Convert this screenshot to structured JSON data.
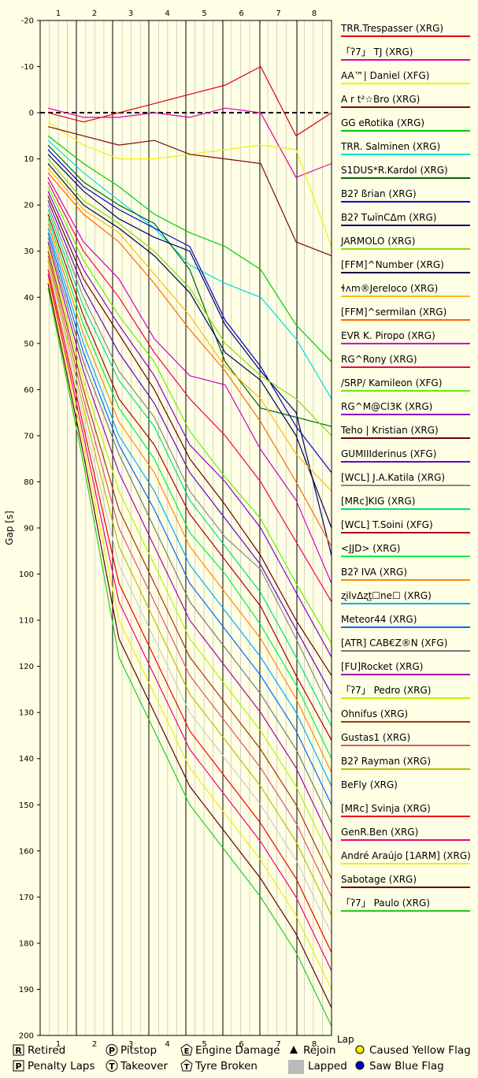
{
  "chart_data": {
    "type": "line",
    "ylabel": "Gap [s]",
    "xlabel": "Lap",
    "ylim": [
      -20,
      200
    ],
    "y_ticks": [
      -20,
      -10,
      0,
      10,
      20,
      30,
      40,
      50,
      60,
      70,
      80,
      90,
      100,
      110,
      120,
      130,
      140,
      150,
      160,
      170,
      180,
      190,
      200
    ],
    "lap_labels": [
      "1",
      "2",
      "3",
      "4",
      "5",
      "6",
      "7",
      "8"
    ],
    "grid": true,
    "legend_position": "right",
    "series": [
      {
        "name": "TRR.Trespasser (XRG)",
        "color": "#dd0000",
        "values": [
          0,
          2,
          0,
          -2,
          -4,
          -6,
          -10,
          5,
          0
        ]
      },
      {
        "name": "「ʔ7」 TJ (XRG)",
        "color": "#dd00aa",
        "values": [
          -1,
          1,
          1,
          0,
          1,
          -1,
          0,
          14,
          11
        ]
      },
      {
        "name": "AA™| Daniel (XFG)",
        "color": "#f0f000",
        "values": [
          2,
          7,
          10,
          10,
          9,
          8,
          7,
          8,
          29
        ]
      },
      {
        "name": "A r t²☆Bro (XRG)",
        "color": "#7a0a0a",
        "values": [
          3,
          5,
          7,
          6,
          9,
          10,
          11,
          28,
          31
        ]
      },
      {
        "name": "GG eRotika (XRG)",
        "color": "#00cc00",
        "values": [
          5,
          11,
          16,
          22,
          26,
          29,
          34,
          46,
          54
        ]
      },
      {
        "name": "TRR. Salminen (XRG)",
        "color": "#00dddd",
        "values": [
          6,
          13,
          19,
          25,
          33,
          37,
          40,
          49,
          62
        ]
      },
      {
        "name": "S1DUS*R.Kardol (XRG)",
        "color": "#006600",
        "values": [
          7,
          15,
          20,
          24,
          34,
          54,
          64,
          66,
          68
        ]
      },
      {
        "name": "B2ʔ ßrian (XRG)",
        "color": "#0000cc",
        "values": [
          8,
          16,
          21,
          25,
          29,
          45,
          55,
          68,
          78
        ]
      },
      {
        "name": "B2ʔ TωïnCΔm (XRG)",
        "color": "#000066",
        "values": [
          9,
          17,
          23,
          27,
          30,
          46,
          56,
          65,
          96
        ]
      },
      {
        "name": "JARMOLO (XRG)",
        "color": "#88dd00",
        "values": [
          10,
          19,
          24,
          30,
          38,
          50,
          57,
          62,
          70
        ]
      },
      {
        "name": "[FFM]^Number (XRG)",
        "color": "#000044",
        "values": [
          11,
          20,
          25,
          31,
          39,
          52,
          58,
          70,
          90
        ]
      },
      {
        "name": "ɬʌm®Jereloco (XRG)",
        "color": "#ffbb00",
        "values": [
          12,
          21,
          26,
          35,
          44,
          55,
          62,
          74,
          82
        ]
      },
      {
        "name": "[FFM]^sermilan (XRG)",
        "color": "#ff6600",
        "values": [
          13,
          22,
          28,
          37,
          47,
          56,
          67,
          80,
          94
        ]
      },
      {
        "name": "EVR K. Piropo (XRG)",
        "color": "#cc00cc",
        "values": [
          14,
          28,
          36,
          49,
          57,
          59,
          73,
          84,
          102
        ]
      },
      {
        "name": "RG^Rony (XRG)",
        "color": "#ee0055",
        "values": [
          15,
          30,
          40,
          52,
          62,
          70,
          80,
          93,
          106
        ]
      },
      {
        "name": "/SRP/ Kamileon (XFG)",
        "color": "#66ee00",
        "values": [
          16,
          32,
          44,
          54,
          69,
          79,
          88,
          102,
          115
        ]
      },
      {
        "name": "RG^M@Cl3K (XRG)",
        "color": "#8800cc",
        "values": [
          17,
          34,
          46,
          57,
          72,
          80,
          90,
          104,
          118
        ]
      },
      {
        "name": "Teho | Kristian (XRG)",
        "color": "#660000",
        "values": [
          18,
          36,
          48,
          60,
          75,
          85,
          96,
          110,
          122
        ]
      },
      {
        "name": "GUMIIIderinus (XFG)",
        "color": "#6600cc",
        "values": [
          19,
          38,
          52,
          63,
          78,
          88,
          98,
          112,
          126
        ]
      },
      {
        "name": "[WCL] J.A.Katila (XRG)",
        "color": "#888888",
        "values": [
          20,
          40,
          56,
          66,
          82,
          92,
          99,
          114,
          130
        ]
      },
      {
        "name": "[MRc]KIG (XRG)",
        "color": "#00dd88",
        "values": [
          21,
          42,
          58,
          68,
          84,
          94,
          104,
          118,
          133
        ]
      },
      {
        "name": "[WCL] T.Soini (XFG)",
        "color": "#aa0000",
        "values": [
          22,
          44,
          62,
          72,
          87,
          97,
          107,
          122,
          136
        ]
      },
      {
        "name": "<JJD> (XRG)",
        "color": "#00ee44",
        "values": [
          23,
          46,
          64,
          75,
          91,
          100,
          111,
          124,
          140
        ]
      },
      {
        "name": "B2ʔ IVA (XRG)",
        "color": "#ff8800",
        "values": [
          24,
          48,
          67,
          78,
          94,
          104,
          114,
          127,
          143
        ]
      },
      {
        "name": "ʐilvΔʐţ☐ne☐ (XRG)",
        "color": "#00aaff",
        "values": [
          25,
          50,
          70,
          82,
          98,
          108,
          118,
          130,
          146
        ]
      },
      {
        "name": "Meteor44 (XRG)",
        "color": "#0066ff",
        "values": [
          26,
          52,
          72,
          86,
          102,
          112,
          122,
          134,
          150
        ]
      },
      {
        "name": "[ATR] CAB€Z®N (XFG)",
        "color": "#777777",
        "values": [
          27,
          54,
          74,
          90,
          106,
          116,
          126,
          138,
          154
        ]
      },
      {
        "name": "[FU]Rocket (XRG)",
        "color": "#aa00aa",
        "values": [
          28,
          56,
          78,
          94,
          110,
          120,
          130,
          142,
          158
        ]
      },
      {
        "name": "「ʔ7」 Pedro (XRG)",
        "color": "#bbee00",
        "values": [
          29,
          58,
          82,
          98,
          114,
          124,
          134,
          146,
          162
        ]
      },
      {
        "name": "Ohnifus (XRG)",
        "color": "#aa3300",
        "values": [
          30,
          60,
          86,
          102,
          118,
          128,
          138,
          150,
          166
        ]
      },
      {
        "name": "Gustas1 (XRG)",
        "color": "#dd5566",
        "values": [
          31,
          62,
          90,
          106,
          122,
          132,
          142,
          154,
          170
        ]
      },
      {
        "name": "B2ʔ Rayman (XRG)",
        "color": "#bbbb00",
        "values": [
          32,
          64,
          94,
          110,
          126,
          136,
          146,
          158,
          174
        ]
      },
      {
        "name": "BeFly (XRG)",
        "color": "#ffffff",
        "values": [
          33,
          66,
          98,
          114,
          130,
          140,
          150,
          162,
          178
        ]
      },
      {
        "name": "[MRc] Svinja (XRG)",
        "color": "#ee0000",
        "values": [
          34,
          68,
          102,
          118,
          134,
          144,
          154,
          166,
          182
        ]
      },
      {
        "name": "GenR.Ben (XRG)",
        "color": "#ee0077",
        "values": [
          35,
          70,
          106,
          122,
          138,
          148,
          158,
          170,
          186
        ]
      },
      {
        "name": "André Araújo [1ARM] (XRG)",
        "color": "#eeee00",
        "values": [
          36,
          72,
          110,
          126,
          142,
          152,
          162,
          174,
          190
        ]
      },
      {
        "name": "Sabotage (XRG)",
        "color": "#660000",
        "values": [
          37,
          74,
          114,
          130,
          146,
          156,
          166,
          178,
          194
        ]
      },
      {
        "name": "「ʔ7」 Paulo (XRG)",
        "color": "#22cc22",
        "values": [
          38,
          76,
          118,
          134,
          150,
          160,
          170,
          182,
          198
        ]
      }
    ],
    "key": [
      {
        "symbol": "R",
        "label": "Retired"
      },
      {
        "symbol": "P",
        "label": "Pitstop"
      },
      {
        "symbol": "E",
        "label": "Engine Damage"
      },
      {
        "symbol": "triangle",
        "label": "Rejoin"
      },
      {
        "symbol": "yellow-dot",
        "label": "Caused Yellow Flag"
      },
      {
        "symbol": "P-box",
        "label": "Penalty Laps"
      },
      {
        "symbol": "T",
        "label": "Takeover"
      },
      {
        "symbol": "tyre",
        "label": "Tyre Broken"
      },
      {
        "symbol": "grey-box",
        "label": "Lapped"
      },
      {
        "symbol": "blue-dot",
        "label": "Saw Blue Flag"
      }
    ]
  }
}
